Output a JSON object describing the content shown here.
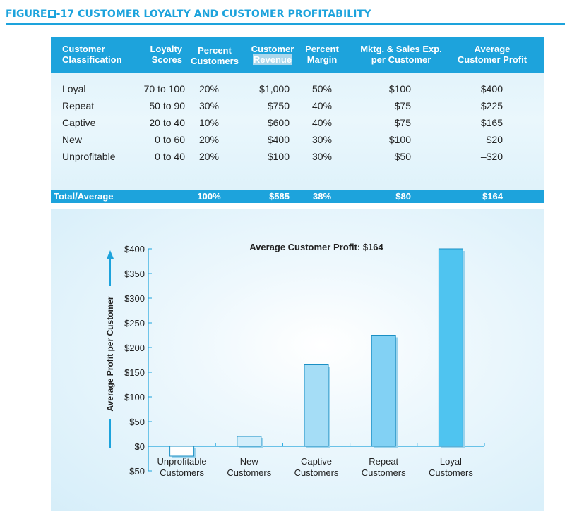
{
  "figure_title_prefix": "FIGURE",
  "figure_title_suffix": "-17  CUSTOMER LOYALTY AND CUSTOMER PROFITABILITY",
  "table": {
    "headers": {
      "classification": [
        "Customer",
        "Classification"
      ],
      "loyalty": [
        "Loyalty",
        "Scores"
      ],
      "pct_customers": [
        "Percent",
        "Customers"
      ],
      "cust_revenue": [
        "Customer",
        "Revenue"
      ],
      "pct_margin": [
        "Percent",
        "Margin"
      ],
      "mktg": [
        "Mktg. & Sales Exp.",
        "per Customer"
      ],
      "avg_profit": [
        "Average",
        "Customer Profit"
      ]
    },
    "rows": [
      {
        "name": "Loyal",
        "loyalty": "70 to 100",
        "pct": "20%",
        "revenue": "$1,000",
        "margin": "50%",
        "mktg": "$100",
        "profit": "$400"
      },
      {
        "name": "Repeat",
        "loyalty": "50 to 90",
        "pct": "30%",
        "revenue": "$750",
        "margin": "40%",
        "mktg": "$75",
        "profit": "$225"
      },
      {
        "name": "Captive",
        "loyalty": "20 to 40",
        "pct": "10%",
        "revenue": "$600",
        "margin": "40%",
        "mktg": "$75",
        "profit": "$165"
      },
      {
        "name": "New",
        "loyalty": "0 to 60",
        "pct": "20%",
        "revenue": "$400",
        "margin": "30%",
        "mktg": "$100",
        "profit": "$20"
      },
      {
        "name": "Unprofitable",
        "loyalty": "0 to 40",
        "pct": "20%",
        "revenue": "$100",
        "margin": "30%",
        "mktg": "$50",
        "profit": "–$20"
      }
    ],
    "total": {
      "name": "Total/Average",
      "pct": "100%",
      "revenue": "$585",
      "margin": "38%",
      "mktg": "$80",
      "profit": "$164"
    }
  },
  "chart_data": {
    "type": "bar",
    "title": "Average Customer Profit: $164",
    "ylabel": "Average Profit per Customer",
    "xlabel": "",
    "categories": [
      [
        "Unprofitable",
        "Customers"
      ],
      [
        "New",
        "Customers"
      ],
      [
        "Captive",
        "Customers"
      ],
      [
        "Repeat",
        "Customers"
      ],
      [
        "Loyal",
        "Customers"
      ]
    ],
    "values": [
      -20,
      20,
      165,
      225,
      400
    ],
    "ylim": [
      -50,
      400
    ],
    "yticks": [
      -50,
      0,
      50,
      100,
      150,
      200,
      250,
      300,
      350,
      400
    ],
    "ytick_labels": [
      "–$50",
      "$0",
      "$50",
      "$100",
      "$150",
      "$200",
      "$250",
      "$300",
      "$350",
      "$400"
    ],
    "bar_fill_colors": [
      "#ffffff",
      "#d2eefb",
      "#a5ddf6",
      "#82d1f4",
      "#4fc4f0"
    ],
    "bar_stroke": "#1a8fc4",
    "bar_shadow": "#9bd3ec",
    "axis_color": "#1da3dc",
    "grid": false
  }
}
